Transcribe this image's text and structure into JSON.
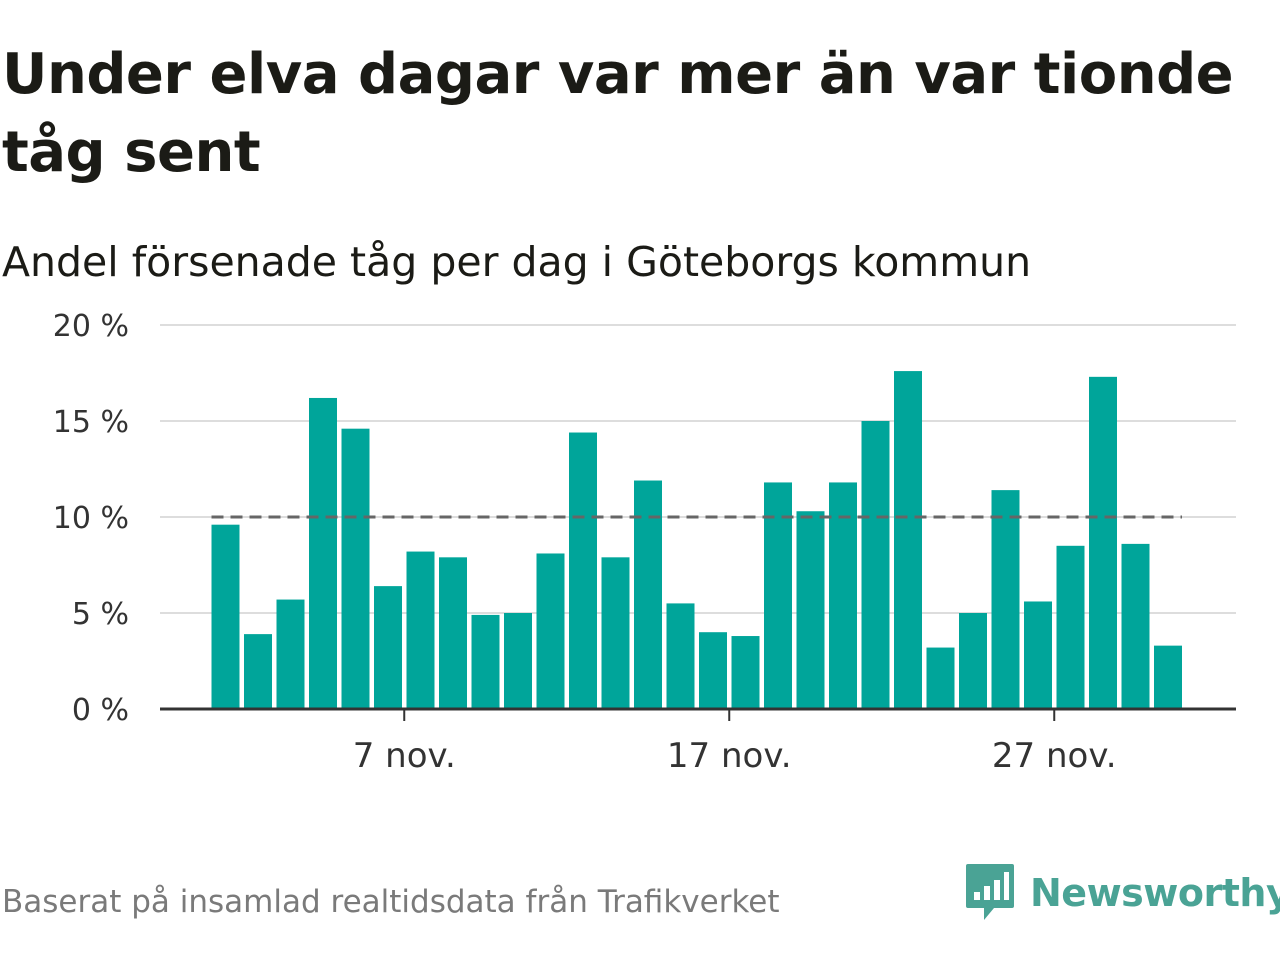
{
  "title": "Under elva dagar var mer än var tionde tåg sent",
  "subtitle": "Andel försenade tåg per dag i Göteborgs kommun",
  "source": "Baserat på insamlad realtidsdata från Trafikverket",
  "brand": {
    "name": "Newsworthy",
    "logo_icon": "newsworthy-speech-bubble-bar-chart-icon",
    "color": "#4aa395"
  },
  "colors": {
    "bar": "#00a59a",
    "grid": "#dddddd",
    "axis": "#333333",
    "reference_line": "#666666",
    "text": "#333333"
  },
  "chart_data": {
    "type": "bar",
    "x_start": "1 nov.",
    "x": [
      "1 nov.",
      "2 nov.",
      "3 nov.",
      "4 nov.",
      "5 nov.",
      "6 nov.",
      "7 nov.",
      "8 nov.",
      "9 nov.",
      "10 nov.",
      "11 nov.",
      "12 nov.",
      "13 nov.",
      "14 nov.",
      "15 nov.",
      "16 nov.",
      "17 nov.",
      "18 nov.",
      "19 nov.",
      "20 nov.",
      "21 nov.",
      "22 nov.",
      "23 nov.",
      "24 nov.",
      "25 nov.",
      "26 nov.",
      "27 nov.",
      "28 nov.",
      "29 nov.",
      "30 nov."
    ],
    "values": [
      9.6,
      3.9,
      5.7,
      16.2,
      14.6,
      6.4,
      8.2,
      7.9,
      4.9,
      5.0,
      8.1,
      14.4,
      7.9,
      11.9,
      5.5,
      4.0,
      3.8,
      11.8,
      10.3,
      11.8,
      15.0,
      17.6,
      3.2,
      5.0,
      11.4,
      5.6,
      8.5,
      17.3,
      8.6,
      3.3
    ],
    "reference_line": 10,
    "ylim": [
      0,
      20
    ],
    "yticks": [
      0,
      5,
      10,
      15,
      20
    ],
    "ytick_labels": [
      "0 %",
      "5 %",
      "10 %",
      "15 %",
      "20 %"
    ],
    "xticks": [
      "7 nov.",
      "17 nov.",
      "27 nov."
    ],
    "grid": true,
    "xlabel": "",
    "ylabel": ""
  }
}
